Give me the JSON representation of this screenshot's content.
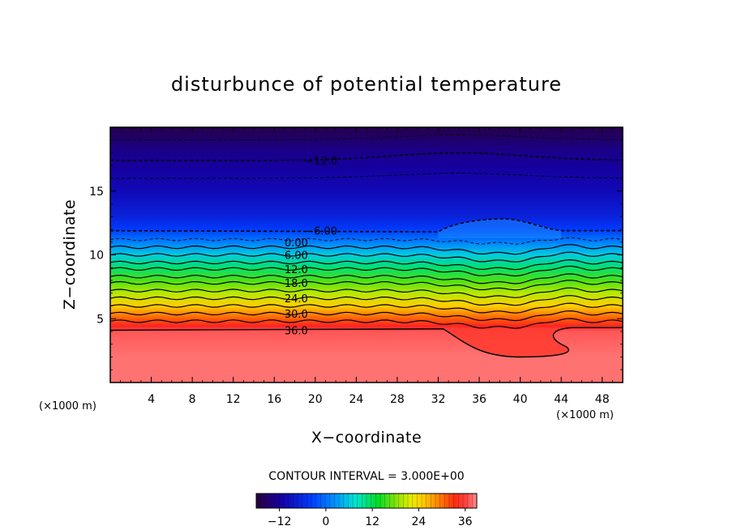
{
  "chart_data": {
    "type": "heatmap",
    "title": "disturbunce of potential temperature",
    "xlabel": "X−coordinate",
    "ylabel": "Z−coordinate",
    "x_unit": "(×1000 m)",
    "xlim": [
      0,
      50
    ],
    "ylim": [
      0,
      20
    ],
    "x_ticks": [
      4,
      8,
      12,
      16,
      20,
      24,
      28,
      32,
      36,
      40,
      44,
      48
    ],
    "y_ticks": [
      5,
      10,
      15
    ],
    "contour_interval_text": "CONTOUR INTERVAL = 3.000E+00",
    "contour_interval": 3,
    "contour_labels": [
      {
        "text": "−12.0",
        "x": 19,
        "z": 17.4
      },
      {
        "text": "−6.00",
        "x": 19,
        "z": 11.9
      },
      {
        "text": "0.00",
        "x": 17,
        "z": 11.0
      },
      {
        "text": "6.00",
        "x": 17,
        "z": 10.0
      },
      {
        "text": "12.0",
        "x": 17,
        "z": 8.9
      },
      {
        "text": "18.0",
        "x": 17,
        "z": 7.8
      },
      {
        "text": "24.0",
        "x": 17,
        "z": 6.6
      },
      {
        "text": "30.0",
        "x": 17,
        "z": 5.4
      },
      {
        "text": "36.0",
        "x": 17,
        "z": 4.1
      }
    ],
    "field_profile": {
      "z": [
        0,
        2,
        4,
        4.4,
        5,
        6,
        7,
        8,
        9,
        10,
        11,
        12,
        13,
        15,
        17,
        18,
        19,
        20
      ],
      "value": [
        38,
        38,
        37,
        35,
        31,
        25,
        20,
        16,
        11,
        6,
        1,
        -4,
        -7,
        -10,
        -12,
        -13,
        -15,
        -17
      ]
    },
    "warm_pool": {
      "x_range": [
        32.5,
        45
      ],
      "z_top": 4.3,
      "z_bottom": 2,
      "value": 39
    },
    "upper_dome": {
      "x_range": [
        32,
        44
      ],
      "z_peak": 12.9,
      "center_x": 37
    },
    "colorbar": {
      "min": -18,
      "max": 39,
      "tick_values": [
        -12,
        0,
        12,
        24,
        36
      ],
      "tick_labels": [
        "−12",
        "0",
        "12",
        "24",
        "36"
      ]
    }
  }
}
